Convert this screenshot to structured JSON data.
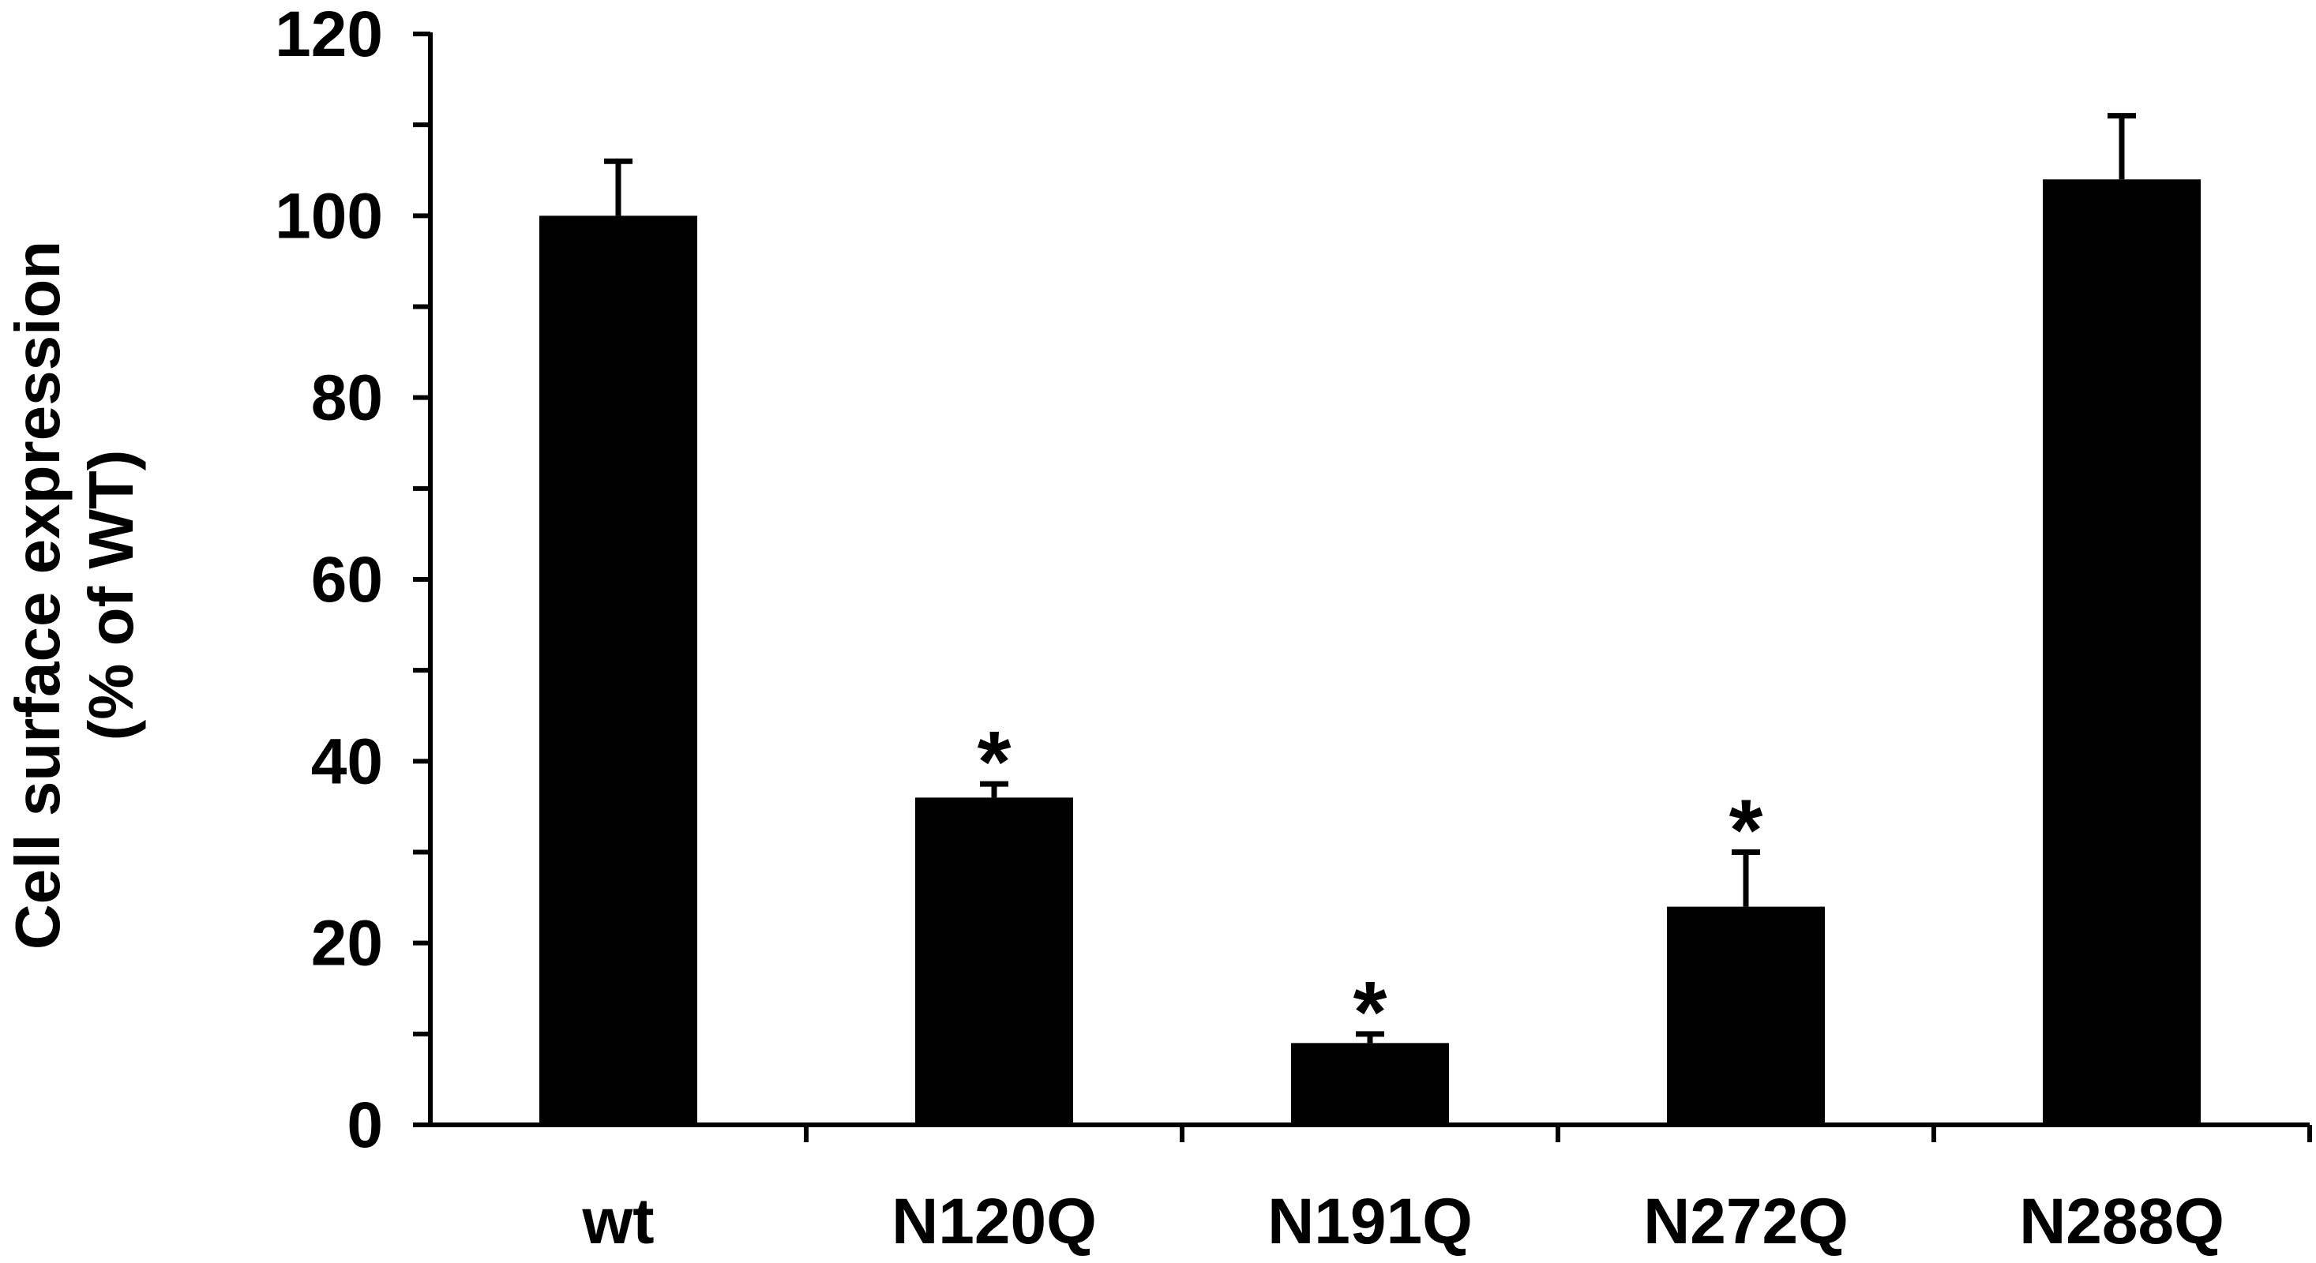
{
  "chart_data": {
    "type": "bar",
    "categories": [
      "wt",
      "N120Q",
      "N191Q",
      "N272Q",
      "N288Q"
    ],
    "values": [
      100,
      36,
      9,
      24,
      104
    ],
    "errors": [
      6,
      1.5,
      1,
      6,
      7
    ],
    "significance": [
      "",
      "*",
      "*",
      "*",
      ""
    ],
    "ylabel_line1": "Cell surface expression",
    "ylabel_line2": "(% of WT)",
    "ylim": [
      0,
      120
    ],
    "yticks": [
      0,
      20,
      40,
      60,
      80,
      100,
      120
    ],
    "bar_color": "#000000",
    "grid": false,
    "legend": false
  }
}
